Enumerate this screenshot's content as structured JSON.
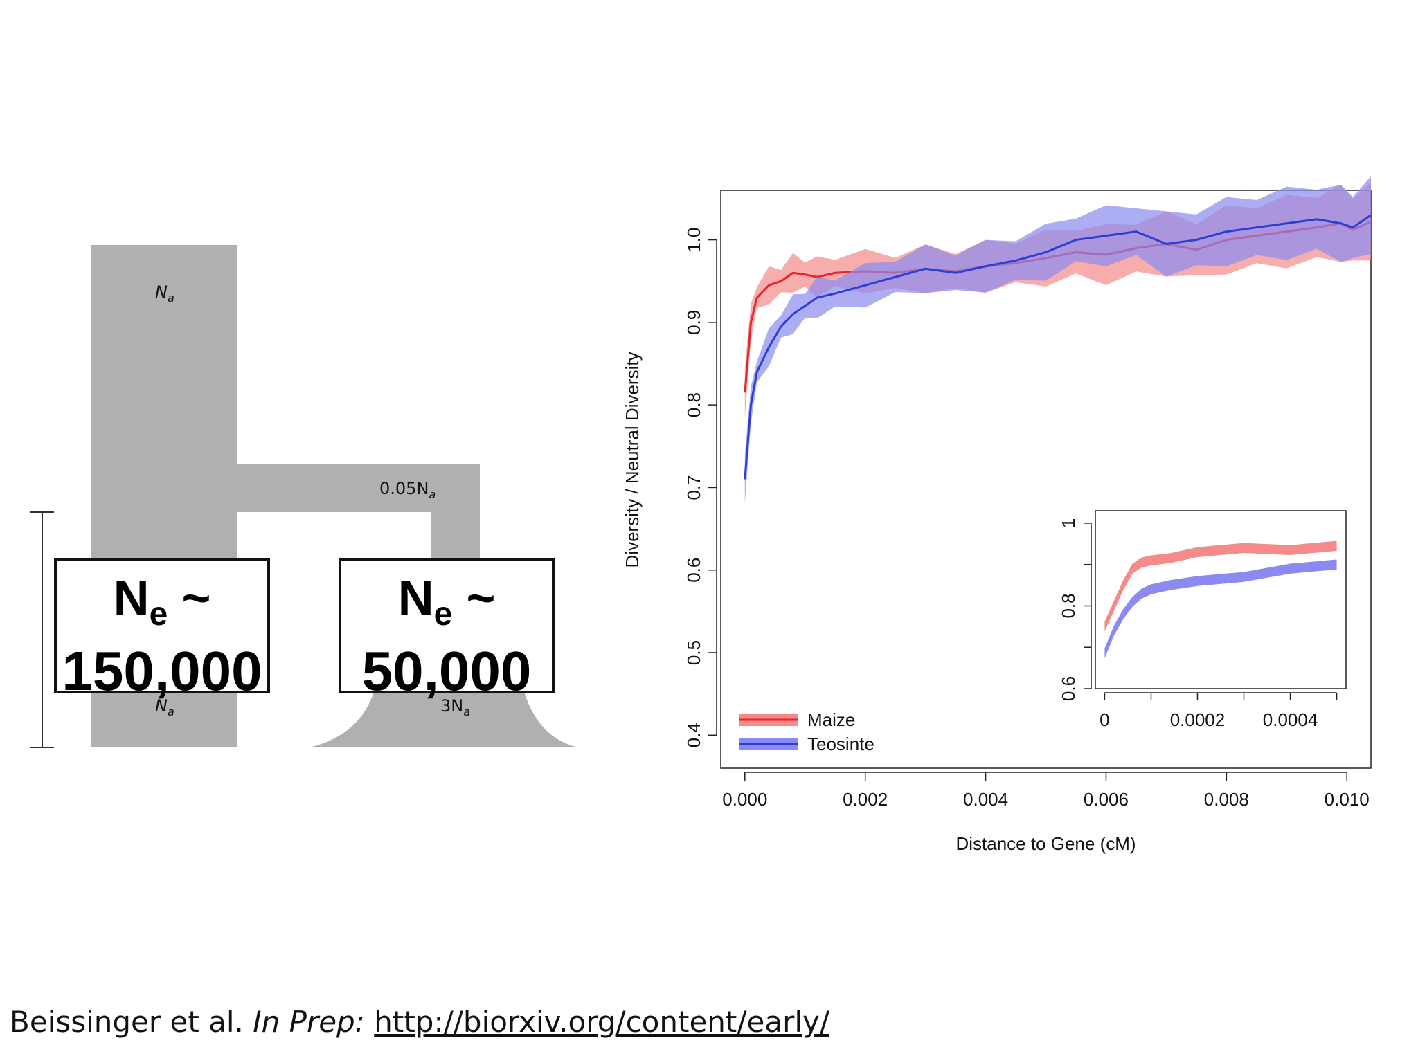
{
  "diagram": {
    "labels": {
      "ancestral": "N",
      "ancestral_sub": "a",
      "bottleneck": "0.05N",
      "bottleneck_sub": "a",
      "left_bottom": "N",
      "left_bottom_sub": "a",
      "right_bottom": "3N",
      "right_bottom_sub": "a"
    },
    "boxes": [
      {
        "ne_label": "N",
        "ne_sub": "e",
        "tilde": " ~",
        "value": "150,000"
      },
      {
        "ne_label": "N",
        "ne_sub": "e",
        "tilde": " ~",
        "value": "50,000"
      }
    ],
    "fill_color": "#b0b0b0"
  },
  "chart_data": {
    "type": "line",
    "xlabel": "Distance to Gene (cM)",
    "ylabel": "Diversity / Neutral Diversity",
    "xlim": [
      -0.0004,
      0.0104
    ],
    "ylim": [
      0.36,
      1.06
    ],
    "xticks": [
      "0.000",
      "0.002",
      "0.004",
      "0.006",
      "0.008",
      "0.010"
    ],
    "yticks": [
      "0.4",
      "0.5",
      "0.6",
      "0.7",
      "0.8",
      "0.9",
      "1.0"
    ],
    "grid": false,
    "legend_placement": "bottom-left",
    "series": [
      {
        "name": "Maize",
        "color": "#e8262a",
        "band_color": "#f58a8a",
        "x": [
          0,
          0.0001,
          0.0002,
          0.0004,
          0.0006,
          0.0008,
          0.001,
          0.0012,
          0.0015,
          0.002,
          0.0025,
          0.003,
          0.0035,
          0.004,
          0.0045,
          0.005,
          0.0055,
          0.006,
          0.0065,
          0.007,
          0.0075,
          0.008,
          0.0085,
          0.009,
          0.0095,
          0.0099,
          0.0101,
          0.0104
        ],
        "y": [
          0.815,
          0.9,
          0.93,
          0.945,
          0.95,
          0.96,
          0.958,
          0.955,
          0.96,
          0.962,
          0.96,
          0.965,
          0.962,
          0.968,
          0.972,
          0.978,
          0.985,
          0.982,
          0.99,
          0.995,
          0.988,
          1.0,
          1.005,
          1.01,
          1.015,
          1.02,
          1.012,
          1.022
        ]
      },
      {
        "name": "Teosinte",
        "color": "#2b3fd6",
        "band_color": "#8a8af0",
        "x": [
          0,
          0.0001,
          0.0002,
          0.0004,
          0.0006,
          0.0008,
          0.001,
          0.0012,
          0.0015,
          0.002,
          0.0025,
          0.003,
          0.0035,
          0.004,
          0.0045,
          0.005,
          0.0055,
          0.006,
          0.0065,
          0.007,
          0.0075,
          0.008,
          0.0085,
          0.009,
          0.0095,
          0.0099,
          0.0101,
          0.0104
        ],
        "y": [
          0.71,
          0.8,
          0.84,
          0.87,
          0.895,
          0.91,
          0.92,
          0.93,
          0.935,
          0.945,
          0.955,
          0.965,
          0.96,
          0.968,
          0.975,
          0.985,
          1.0,
          1.005,
          1.01,
          0.995,
          1.0,
          1.01,
          1.015,
          1.02,
          1.025,
          1.02,
          1.015,
          1.03
        ]
      }
    ],
    "inset": {
      "xlim": [
        -2e-05,
        0.00052
      ],
      "ylim": [
        0.6,
        1.03
      ],
      "xticks": [
        "0",
        "0.0002",
        "0.0004"
      ],
      "yticks": [
        "0.6",
        "0.8",
        "1"
      ],
      "series": [
        {
          "name": "Maize",
          "x": [
            0,
            2e-05,
            4e-05,
            6e-05,
            8e-05,
            0.0001,
            0.00014,
            0.0002,
            0.0003,
            0.0004,
            0.0005
          ],
          "y": [
            0.75,
            0.8,
            0.85,
            0.89,
            0.905,
            0.91,
            0.915,
            0.93,
            0.94,
            0.935,
            0.945
          ]
        },
        {
          "name": "Teosinte",
          "x": [
            0,
            2e-05,
            4e-05,
            6e-05,
            8e-05,
            0.0001,
            0.00014,
            0.0002,
            0.0003,
            0.0004,
            0.0005
          ],
          "y": [
            0.685,
            0.74,
            0.78,
            0.81,
            0.83,
            0.84,
            0.85,
            0.86,
            0.87,
            0.89,
            0.9
          ]
        }
      ]
    }
  },
  "citation": {
    "authors": "Beissinger et al. ",
    "status": "In Prep:",
    "sep": " ",
    "url": "http://biorxiv.org/content/early/"
  }
}
